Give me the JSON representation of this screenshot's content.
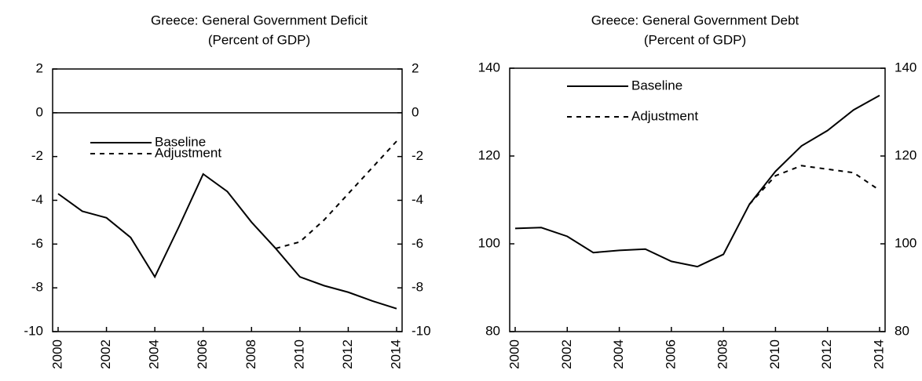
{
  "chart_data": [
    {
      "type": "line",
      "title": "Greece: General Government Deficit",
      "subtitle": "(Percent of GDP)",
      "x": [
        2000,
        2001,
        2002,
        2003,
        2004,
        2005,
        2006,
        2007,
        2008,
        2009,
        2010,
        2011,
        2012,
        2013,
        2014
      ],
      "series": [
        {
          "name": "Baseline",
          "color": "#000000",
          "style": "solid",
          "values": [
            -3.7,
            -4.5,
            -4.8,
            -5.7,
            -7.5,
            -5.2,
            -2.8,
            -3.6,
            -5.0,
            -6.2,
            -7.5,
            -7.9,
            -8.2,
            -8.6,
            -8.95
          ]
        },
        {
          "name": "Adjustment",
          "color": "#000000",
          "style": "dashed",
          "values": [
            null,
            null,
            null,
            null,
            null,
            null,
            null,
            null,
            null,
            -6.2,
            -5.9,
            -4.9,
            -3.7,
            -2.5,
            -1.3
          ]
        }
      ],
      "xlim": [
        2000,
        2014
      ],
      "xticks": [
        2000,
        2002,
        2004,
        2006,
        2008,
        2010,
        2012,
        2014
      ],
      "ylim": [
        -10,
        2
      ],
      "yticks": [
        -10,
        -8,
        -6,
        -4,
        -2,
        0,
        2
      ],
      "y2lim": [
        -10,
        2
      ],
      "y2ticks": [
        -10,
        -8,
        -6,
        -4,
        -2,
        0,
        2
      ],
      "zero_line": true,
      "legend": "center left"
    },
    {
      "type": "line",
      "title": "Greece: General Government Debt",
      "subtitle": "(Percent of GDP)",
      "x": [
        2000,
        2001,
        2002,
        2003,
        2004,
        2005,
        2006,
        2007,
        2008,
        2009,
        2010,
        2011,
        2012,
        2013,
        2014
      ],
      "series": [
        {
          "name": "Baseline",
          "color": "#000000",
          "style": "solid",
          "values": [
            103.5,
            103.7,
            101.7,
            98.0,
            98.5,
            98.8,
            96.0,
            94.8,
            97.6,
            109.0,
            116.5,
            122.3,
            125.8,
            130.5,
            133.8
          ]
        },
        {
          "name": "Adjustment",
          "color": "#000000",
          "style": "dashed",
          "values": [
            null,
            null,
            null,
            null,
            null,
            null,
            null,
            null,
            null,
            109.0,
            115.5,
            117.8,
            117.0,
            116.2,
            112.2
          ]
        }
      ],
      "xlim": [
        2000,
        2014
      ],
      "xticks": [
        2000,
        2002,
        2004,
        2006,
        2008,
        2010,
        2012,
        2014
      ],
      "ylim": [
        80,
        140
      ],
      "yticks": [
        80,
        100,
        120,
        140
      ],
      "y2lim": [
        80,
        140
      ],
      "y2ticks": [
        80,
        100,
        120,
        140
      ],
      "zero_line": false,
      "legend": "upper left"
    }
  ]
}
